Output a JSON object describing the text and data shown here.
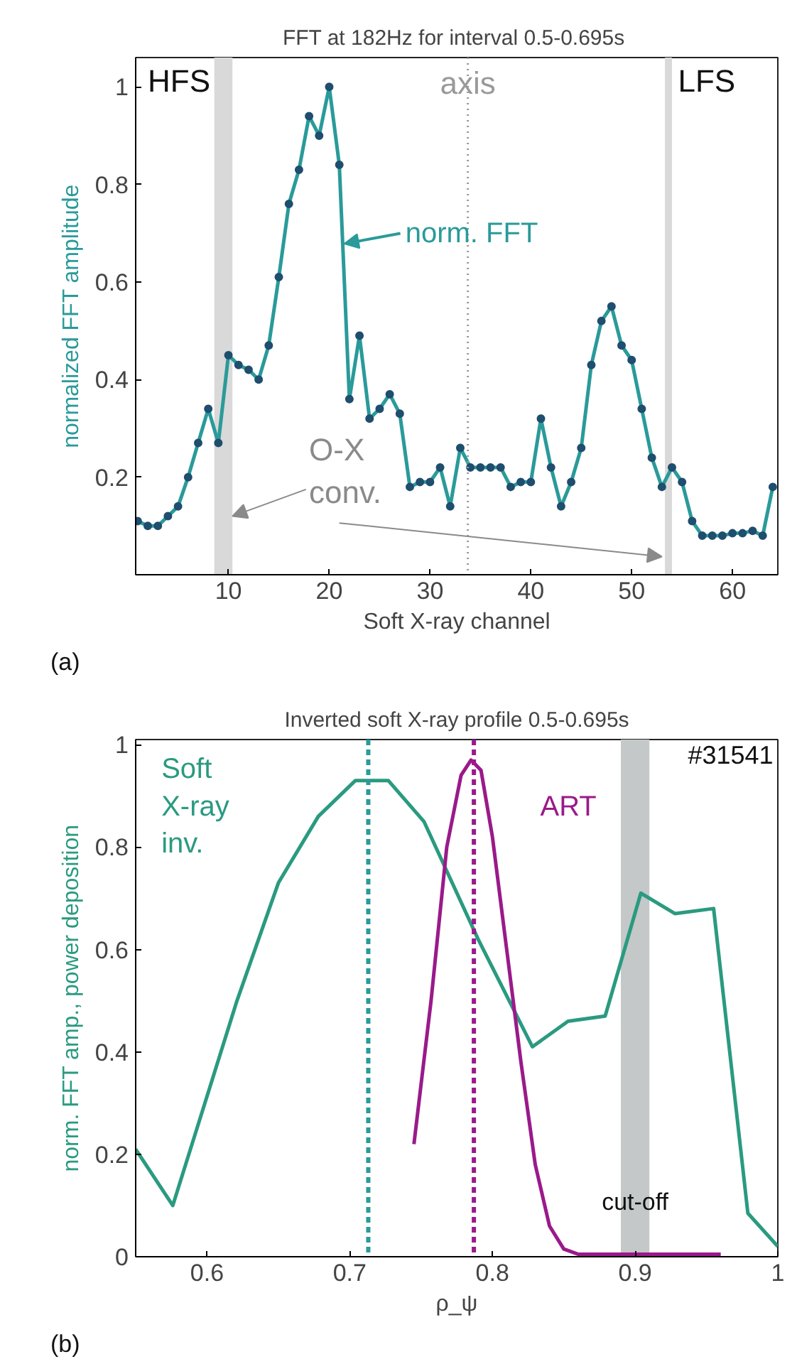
{
  "chart_data": [
    {
      "type": "line",
      "title": "FFT at 182Hz for interval  0.5-0.695s",
      "xlabel": "Soft X-ray channel",
      "ylabel": "normalized FFT amplitude",
      "x": [
        1,
        2,
        3,
        4,
        5,
        6,
        7,
        8,
        9,
        10,
        11,
        12,
        13,
        14,
        15,
        16,
        17,
        18,
        19,
        20,
        21,
        22,
        23,
        24,
        25,
        26,
        27,
        28,
        29,
        30,
        31,
        32,
        33,
        34,
        35,
        36,
        37,
        38,
        39,
        40,
        41,
        42,
        43,
        44,
        45,
        46,
        47,
        48,
        49,
        50,
        51,
        52,
        53,
        54,
        55,
        56,
        57,
        58,
        59,
        60,
        61,
        62,
        63,
        64
      ],
      "series": [
        {
          "name": "norm. FFT",
          "color": "#2a9a9a",
          "values": [
            0.11,
            0.1,
            0.1,
            0.12,
            0.14,
            0.2,
            0.27,
            0.34,
            0.27,
            0.45,
            0.43,
            0.42,
            0.4,
            0.47,
            0.61,
            0.76,
            0.83,
            0.94,
            0.9,
            1.0,
            0.84,
            0.36,
            0.49,
            0.32,
            0.34,
            0.37,
            0.33,
            0.18,
            0.19,
            0.19,
            0.22,
            0.14,
            0.26,
            0.22,
            0.22,
            0.22,
            0.22,
            0.18,
            0.19,
            0.19,
            0.32,
            0.22,
            0.14,
            0.19,
            0.26,
            0.43,
            0.52,
            0.55,
            0.47,
            0.44,
            0.34,
            0.24,
            0.18,
            0.22,
            0.19,
            0.11,
            0.08,
            0.08,
            0.08,
            0.085,
            0.085,
            0.09,
            0.08,
            0.18
          ]
        }
      ],
      "marker": "circle",
      "line_style": "solid",
      "grid": false,
      "xlim": [
        0.8,
        64.5
      ],
      "ylim": [
        0,
        1.06
      ],
      "xticks": [
        10,
        20,
        30,
        40,
        50,
        60
      ],
      "yticks": [
        0.2,
        0.4,
        0.6,
        0.8,
        1
      ],
      "ref_lines": [
        {
          "axis": "x",
          "value": 33.75,
          "label": "axis",
          "color": "#999999",
          "line_style": "dotted"
        }
      ],
      "bands": [
        {
          "axis": "x",
          "from": 8.6,
          "to": 10.4,
          "label": "HFS",
          "color": "#d9d9d9"
        },
        {
          "axis": "x",
          "from": 53.3,
          "to": 54.0,
          "label": "LFS",
          "color": "#d9d9d9"
        }
      ],
      "annotations": [
        {
          "text": "O-X conv.",
          "x": 10.4,
          "y": 0.12
        },
        "(a)"
      ]
    },
    {
      "type": "line",
      "title": "Inverted soft X-ray profile 0.5-0.695s",
      "xlabel": "ρ_ψ",
      "ylabel": "norm. FFT amp., power deposition",
      "series": [
        {
          "name": "Soft X-ray inv.",
          "color": "#2a9a80",
          "x": [
            0.55,
            0.576,
            0.621,
            0.65,
            0.678,
            0.704,
            0.727,
            0.752,
            0.79,
            0.828,
            0.853,
            0.879,
            0.904,
            0.928,
            0.955,
            0.979,
            1.0
          ],
          "values": [
            0.21,
            0.1,
            0.5,
            0.73,
            0.86,
            0.93,
            0.93,
            0.85,
            0.62,
            0.41,
            0.46,
            0.47,
            0.71,
            0.67,
            0.68,
            0.085,
            0.02
          ]
        },
        {
          "name": "ART",
          "color": "#9a1a8a",
          "x": [
            0.745,
            0.757,
            0.768,
            0.778,
            0.785,
            0.792,
            0.8,
            0.81,
            0.82,
            0.83,
            0.84,
            0.85,
            0.86,
            0.96
          ],
          "values": [
            0.22,
            0.5,
            0.8,
            0.94,
            0.97,
            0.95,
            0.82,
            0.6,
            0.38,
            0.18,
            0.06,
            0.015,
            0.005,
            0.005
          ]
        }
      ],
      "marker": "none",
      "line_style": "solid",
      "grid": false,
      "xlim": [
        0.55,
        1.0
      ],
      "ylim": [
        0,
        1.01
      ],
      "xticks": [
        0.6,
        0.7,
        0.8,
        0.9,
        1
      ],
      "yticks": [
        0,
        0.2,
        0.4,
        0.6,
        0.8,
        1
      ],
      "ref_lines": [
        {
          "axis": "x",
          "value": 0.713,
          "color": "#2a9a9a",
          "line_style": "dashed"
        },
        {
          "axis": "x",
          "value": 0.787,
          "color": "#9a1a8a",
          "line_style": "dashed"
        }
      ],
      "bands": [
        {
          "axis": "x",
          "from": 0.89,
          "to": 0.91,
          "label": "cut-off",
          "color": "#c4c8c8"
        }
      ],
      "annotations": [
        "#31541",
        "(b)"
      ]
    }
  ]
}
